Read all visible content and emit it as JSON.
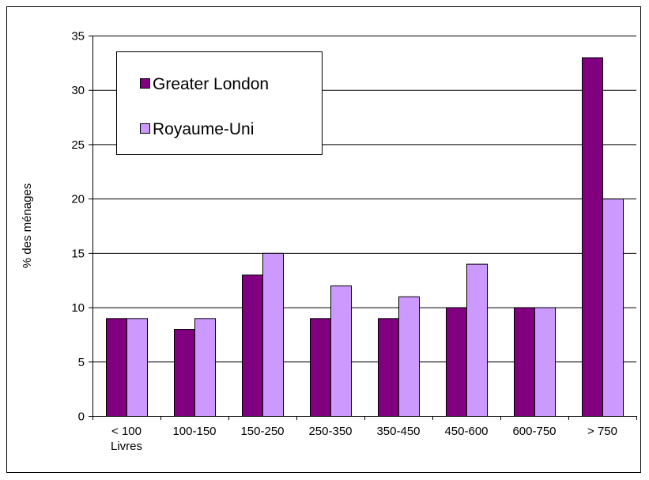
{
  "chart_data": {
    "type": "bar",
    "title": "",
    "xlabel": "",
    "ylabel": "% des ménages",
    "categories": [
      "< 100 Livres",
      "100-150",
      "150-250",
      "250-350",
      "350-450",
      "450-600",
      "600-750",
      "> 750"
    ],
    "category_label_lines": [
      [
        "< 100",
        "Livres"
      ],
      [
        "100-150"
      ],
      [
        "150-250"
      ],
      [
        "250-350"
      ],
      [
        "350-450"
      ],
      [
        "450-600"
      ],
      [
        "600-750"
      ],
      [
        "> 750"
      ]
    ],
    "series": [
      {
        "name": "Greater London",
        "values": [
          9,
          8,
          13,
          9,
          9,
          10,
          10,
          33
        ],
        "color": "#800080"
      },
      {
        "name": "Royaume-Uni",
        "values": [
          9,
          9,
          15,
          12,
          11,
          14,
          10,
          20
        ],
        "color": "#CC99FF"
      }
    ],
    "ylim": [
      0,
      35
    ],
    "yticks": [
      0,
      5,
      10,
      15,
      20,
      25,
      30,
      35
    ],
    "grid": true,
    "legend_position": "top-left"
  }
}
